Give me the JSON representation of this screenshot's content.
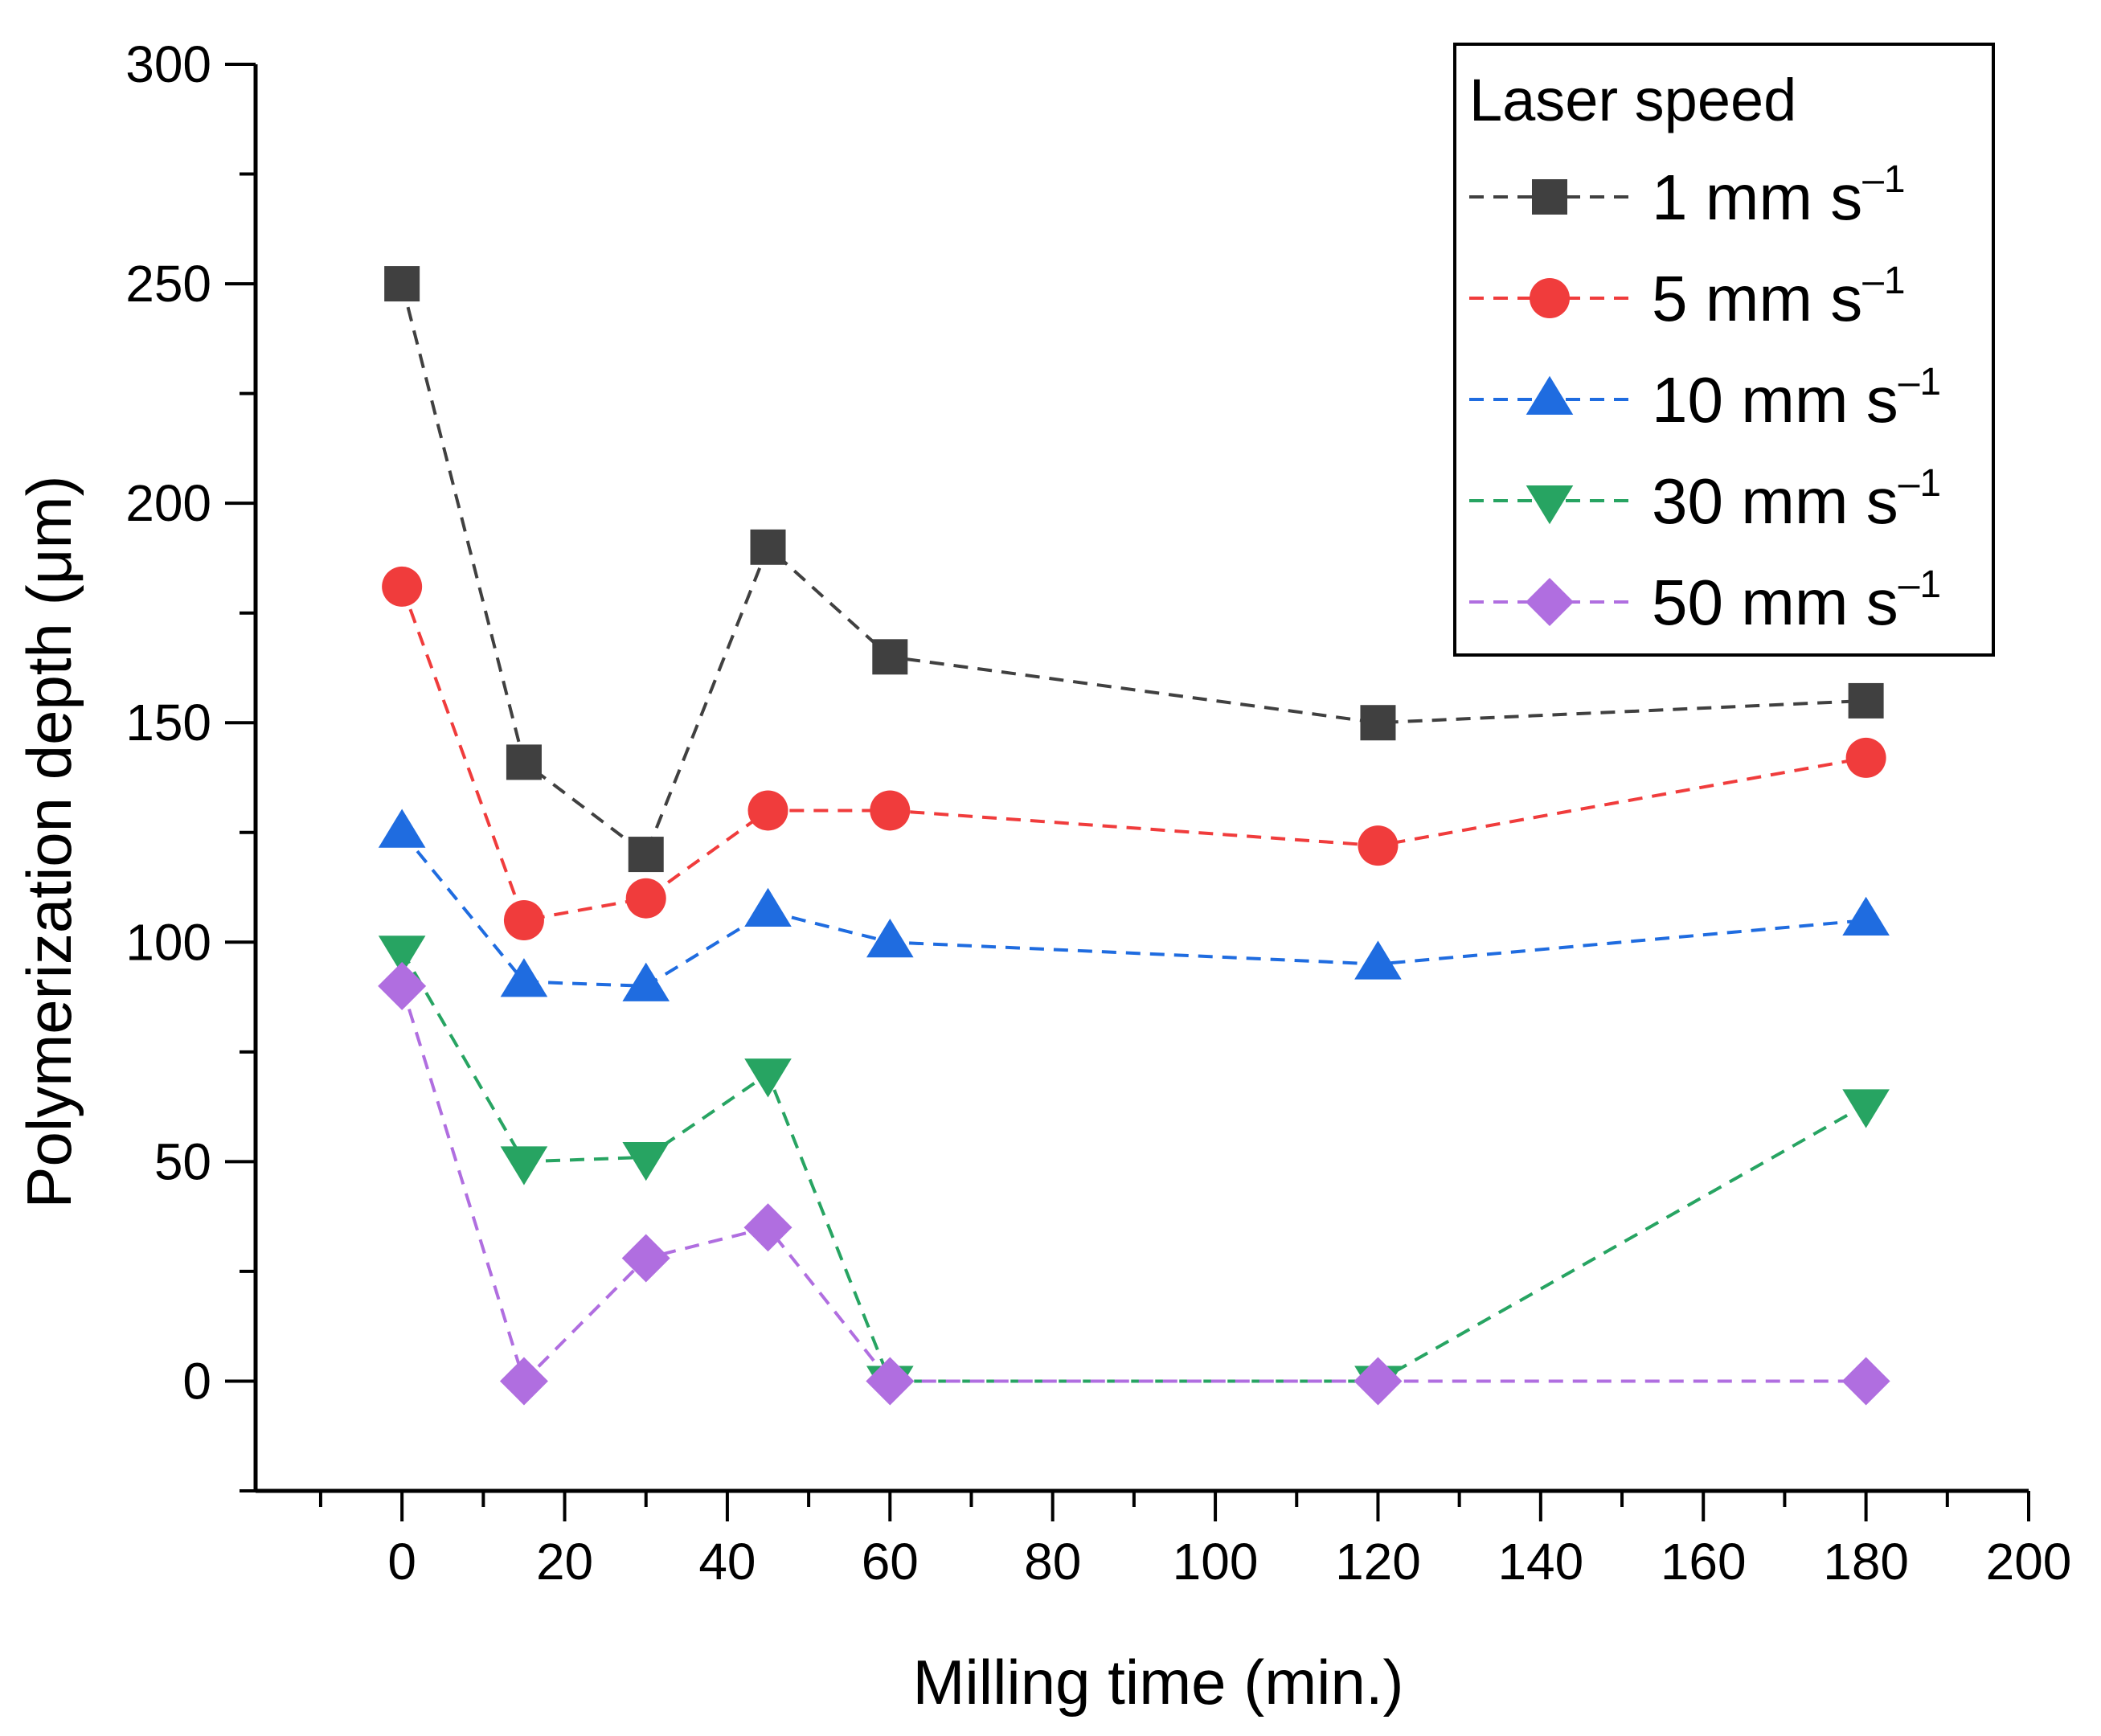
{
  "chart_data": {
    "type": "line",
    "title": "",
    "xlabel": "Milling time (min.)",
    "ylabel": "Polymerization depth (μm)",
    "xlim": [
      -18,
      200
    ],
    "ylim": [
      -25,
      300
    ],
    "x_ticks": [
      0,
      20,
      40,
      60,
      80,
      100,
      120,
      140,
      160,
      180,
      200
    ],
    "x_tick_labels": [
      "0",
      "20",
      "40",
      "60",
      "80",
      "100",
      "120",
      "140",
      "160",
      "180",
      "200"
    ],
    "y_ticks": [
      0,
      50,
      100,
      150,
      200,
      250,
      300
    ],
    "y_tick_labels": [
      "0",
      "50",
      "100",
      "150",
      "200",
      "250",
      "300"
    ],
    "grid": false,
    "legend": {
      "title": "Laser speed",
      "position": "top-right"
    },
    "x": [
      0,
      15,
      30,
      45,
      60,
      120,
      180
    ],
    "series": [
      {
        "name": "1 mm s⁻¹",
        "label_main": "1 mm s",
        "label_sup": "–1",
        "marker": "square",
        "color": "#404040",
        "values": [
          250,
          141,
          120,
          190,
          165,
          150,
          155
        ]
      },
      {
        "name": "5 mm s⁻¹",
        "label_main": "5 mm s",
        "label_sup": "–1",
        "marker": "circle",
        "color": "#f03c3c",
        "values": [
          181,
          105,
          110,
          130,
          130,
          122,
          142
        ]
      },
      {
        "name": "10 mm s⁻¹",
        "label_main": "10 mm s",
        "label_sup": "–1",
        "marker": "triangle-up",
        "color": "#1f6ce0",
        "values": [
          125,
          91,
          90,
          107,
          100,
          95,
          105
        ]
      },
      {
        "name": "30 mm s⁻¹",
        "label_main": "30 mm s",
        "label_sup": "–1",
        "marker": "triangle-down",
        "color": "#27a462",
        "values": [
          98,
          50,
          51,
          70,
          0,
          0,
          63
        ]
      },
      {
        "name": "50 mm s⁻¹",
        "label_main": "50 mm s",
        "label_sup": "–1",
        "marker": "diamond",
        "color": "#b06ee0",
        "values": [
          90,
          0,
          28,
          35,
          0,
          0,
          0
        ]
      }
    ]
  }
}
